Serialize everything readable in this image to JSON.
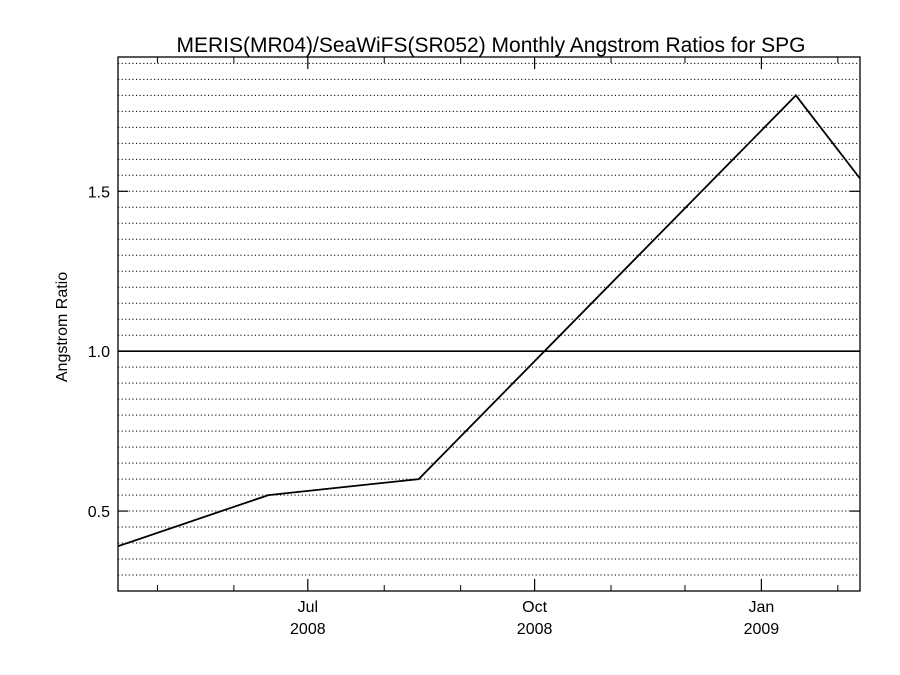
{
  "chart_data": {
    "type": "line",
    "title": "MERIS(MR04)/SeaWiFS(SR052) Monthly Angstrom Ratios for SPG",
    "xlabel": "",
    "ylabel": "Angstrom Ratio",
    "xlim": [
      "2008-04-15",
      "2009-02-10"
    ],
    "ylim": [
      0.25,
      1.92
    ],
    "x_ticks": [
      {
        "date": "2008-07-01",
        "month": "Jul",
        "year": "2008"
      },
      {
        "date": "2008-10-01",
        "month": "Oct",
        "year": "2008"
      },
      {
        "date": "2009-01-01",
        "month": "Jan",
        "year": "2009"
      }
    ],
    "x_minor_ticks": [
      "2008-05-01",
      "2008-06-01",
      "2008-08-01",
      "2008-09-01",
      "2008-11-01",
      "2008-12-01",
      "2009-02-01"
    ],
    "y_ticks": [
      "0.5",
      "1.0",
      "1.5"
    ],
    "reference_line": 1.0,
    "grid": "dotted horizontal",
    "series": [
      {
        "x": [
          "2008-04-15",
          "2008-06-15",
          "2008-08-15",
          "2009-01-15",
          "2009-02-10"
        ],
        "y": [
          0.39,
          0.55,
          0.6,
          1.8,
          1.54
        ]
      }
    ]
  },
  "colors": {
    "line": "#000000",
    "grid": "#000000",
    "background": "#ffffff"
  }
}
